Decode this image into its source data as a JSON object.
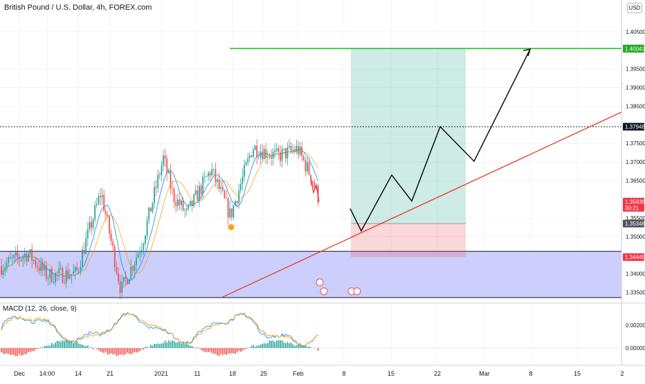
{
  "header": {
    "title": "British Pound / U.S. Dollar, 4h, FOREX.com",
    "currency_badge": "USD"
  },
  "chart_data": {
    "type": "line",
    "price_pane": {
      "y_ticks": [
        "1.40500",
        "1.39500",
        "1.39000",
        "1.38500",
        "1.37500",
        "1.37000",
        "1.36500",
        "1.35500",
        "1.35000",
        "1.34000",
        "1.33500"
      ],
      "y_tick_values": [
        1.405,
        1.395,
        1.39,
        1.385,
        1.375,
        1.37,
        1.365,
        1.355,
        1.35,
        1.34,
        1.335
      ],
      "ylim": [
        1.3325,
        1.4135
      ],
      "price_labels": [
        {
          "text": "1.40048",
          "value": 1.40048,
          "color": "#089981"
        },
        {
          "text": "1.40043",
          "value": 1.40043,
          "color": "#22ab22"
        },
        {
          "text": "1.37948",
          "value": 1.37948,
          "color": "#131722"
        },
        {
          "text": "1.35938",
          "value": 1.35938,
          "color": "#f23645"
        },
        {
          "text": "30:21",
          "value": 1.3577,
          "color": "#f23645"
        },
        {
          "text": "1.35346",
          "value": 1.35346,
          "color": "#50535e"
        },
        {
          "text": "1.34445",
          "value": 1.34445,
          "color": "#f23645"
        }
      ],
      "horizontal_lines": [
        {
          "value": 1.40048,
          "style": "solid",
          "color": "#22c322"
        },
        {
          "value": 1.37948,
          "style": "dotted",
          "color": "#131722"
        }
      ],
      "demand_zone": {
        "from": 1.3336,
        "to": 1.34602,
        "color": "#c9cbfb"
      },
      "long_position": {
        "entry": 1.35346,
        "target": 1.40048,
        "stop": 1.34445
      },
      "projection_path": [
        1.3575,
        1.3515,
        1.3665,
        1.3595,
        1.3795,
        1.3702,
        1.4003
      ],
      "trendline": {
        "start": 1.3336,
        "end": 1.3834
      },
      "close_segment": [
        1.3658,
        1.3618,
        1.3638,
        1.3594
      ]
    },
    "macd": {
      "title": "MACD (12, 26, close, 9)",
      "y_ticks": [
        "0.00200",
        "0.00000"
      ],
      "y_tick_values": [
        0.002,
        0.0
      ]
    },
    "x_axis": {
      "labels": [
        "Dec",
        "14:00",
        "14",
        "21",
        "2021",
        "11",
        "18",
        "25",
        "Feb",
        "8",
        "15",
        "22",
        "Mar",
        "8",
        "15",
        "2"
      ]
    }
  }
}
